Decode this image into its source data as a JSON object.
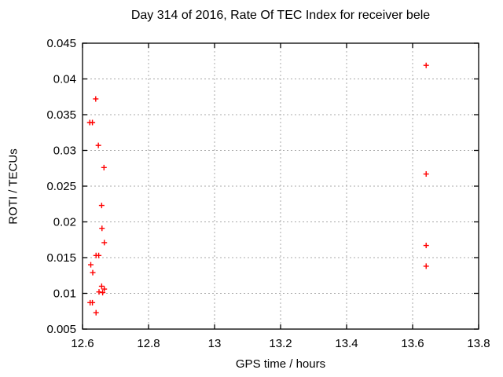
{
  "chart_data": {
    "type": "scatter",
    "title": "Day 314 of 2016, Rate Of TEC Index for receiver bele",
    "xlabel": "GPS time / hours",
    "ylabel": "ROTI / TECUs",
    "xlim": [
      12.6,
      13.8
    ],
    "ylim": [
      0.005,
      0.045
    ],
    "x_ticks": [
      12.6,
      12.8,
      13,
      13.2,
      13.4,
      13.6,
      13.8
    ],
    "x_tick_labels": [
      "12.6",
      "12.8",
      "13",
      "13.2",
      "13.4",
      "13.6",
      "13.8"
    ],
    "y_ticks": [
      0.005,
      0.01,
      0.015,
      0.02,
      0.025,
      0.03,
      0.035,
      0.04,
      0.045
    ],
    "y_tick_labels": [
      "0.005",
      "0.01",
      "0.015",
      "0.02",
      "0.025",
      "0.03",
      "0.035",
      "0.04",
      "0.045"
    ],
    "grid": true,
    "legend": "none",
    "marker": {
      "shape": "plus",
      "color": "#ff0000",
      "size": 7
    },
    "series": [
      {
        "name": "ROTI",
        "points": [
          [
            12.64,
            0.0372
          ],
          [
            12.622,
            0.0339
          ],
          [
            12.63,
            0.0339
          ],
          [
            12.648,
            0.0307
          ],
          [
            12.665,
            0.0276
          ],
          [
            12.658,
            0.0223
          ],
          [
            12.659,
            0.0191
          ],
          [
            12.666,
            0.0171
          ],
          [
            12.641,
            0.0153
          ],
          [
            12.649,
            0.0153
          ],
          [
            12.625,
            0.014
          ],
          [
            12.631,
            0.0129
          ],
          [
            12.658,
            0.011
          ],
          [
            12.666,
            0.0106
          ],
          [
            12.65,
            0.0102
          ],
          [
            12.661,
            0.0101
          ],
          [
            12.623,
            0.0087
          ],
          [
            12.63,
            0.0087
          ],
          [
            12.641,
            0.0073
          ],
          [
            13.641,
            0.0419
          ],
          [
            13.641,
            0.0267
          ],
          [
            13.641,
            0.0167
          ],
          [
            13.641,
            0.0138
          ]
        ]
      }
    ]
  },
  "colors": {
    "background": "#ffffff",
    "border": "#000000",
    "grid": "#a8a8a8",
    "text": "#000000",
    "marker": "#ff0000"
  }
}
